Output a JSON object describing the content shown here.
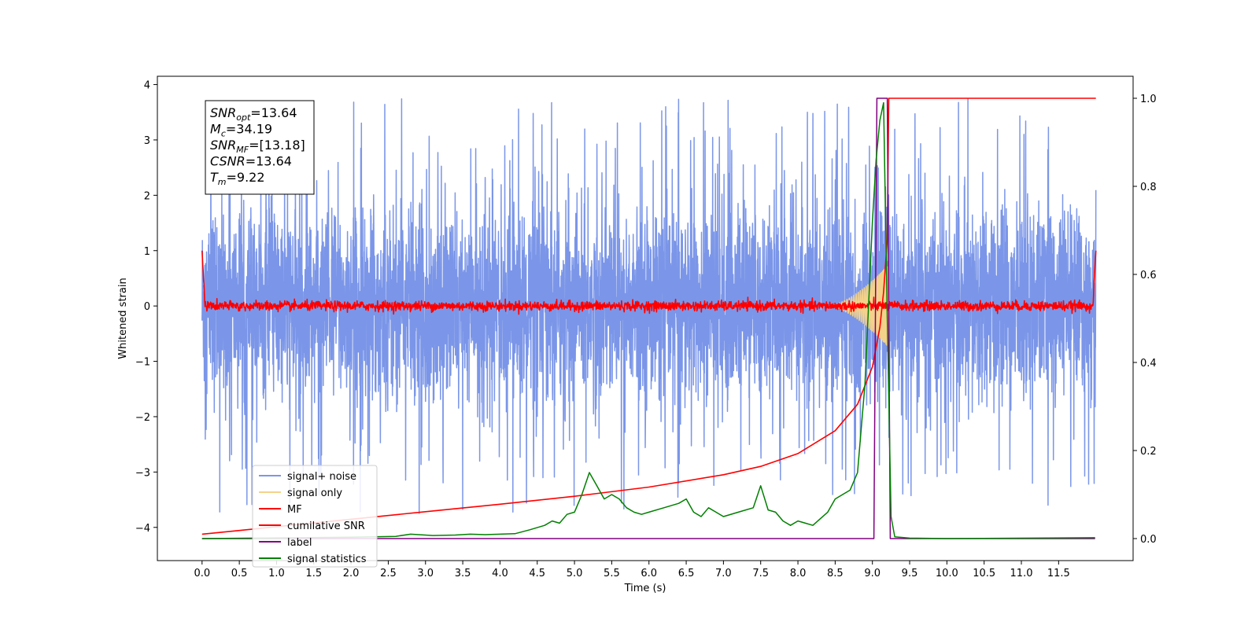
{
  "chart_data": {
    "type": "line",
    "title": "",
    "xlabel": "Time (s)",
    "ylabel": "Whitened strain",
    "y2label": "",
    "xlim": [
      -0.6,
      12.5
    ],
    "ylim": [
      -4.6,
      4.15
    ],
    "y2lim": [
      -0.05,
      1.05
    ],
    "xticks": [
      0.0,
      0.5,
      1.0,
      1.5,
      2.0,
      2.5,
      3.0,
      3.5,
      4.0,
      4.5,
      5.0,
      5.5,
      6.0,
      6.5,
      7.0,
      7.5,
      8.0,
      8.5,
      9.0,
      9.5,
      10.0,
      10.5,
      11.0,
      11.5
    ],
    "xtick_labels": [
      "0.0",
      "0.5",
      "1.0",
      "1.5",
      "2.0",
      "2.5",
      "3.0",
      "3.5",
      "4.0",
      "4.5",
      "5.0",
      "5.5",
      "6.0",
      "6.5",
      "7.0",
      "7.5",
      "8.0",
      "8.5",
      "9.0",
      "9.5",
      "10.0",
      "10.5",
      "11.0",
      "11.5"
    ],
    "yticks": [
      -4,
      -3,
      -2,
      -1,
      0,
      1,
      2,
      3,
      4
    ],
    "ytick_labels": [
      "−4",
      "−3",
      "−2",
      "−1",
      "0",
      "1",
      "2",
      "3",
      "4"
    ],
    "y2ticks": [
      0.0,
      0.2,
      0.4,
      0.6,
      0.8,
      1.0
    ],
    "y2tick_labels": [
      "0.0",
      "0.2",
      "0.4",
      "0.6",
      "0.8",
      "1.0"
    ],
    "grid": false,
    "legend_position": "lower-left",
    "annotation": {
      "lines": [
        {
          "base": "SNR",
          "sub": "opt",
          "value": "=13.64"
        },
        {
          "base": "M",
          "sub": "c",
          "value": "=34.19"
        },
        {
          "base": "SNR",
          "sub": "MF",
          "value": "=[13.18]"
        },
        {
          "base": "CSNR",
          "sub": "",
          "value": "=13.64"
        },
        {
          "base": "T",
          "sub": "m",
          "value": "=9.22"
        }
      ]
    },
    "series": [
      {
        "name": "signal+ noise",
        "axis": "left",
        "color": "#7b96e8",
        "kind": "noise",
        "x_range": [
          0.0,
          12.0
        ],
        "envelope_typical": 2.0,
        "envelope_peak": 3.75
      },
      {
        "name": "signal only",
        "axis": "left",
        "color": "#f5d28a",
        "kind": "chirp",
        "x_range": [
          8.4,
          9.22
        ],
        "peak_amplitude": 0.75
      },
      {
        "name": "MF",
        "axis": "left",
        "color": "#ff0000",
        "kind": "mf",
        "x_range": [
          0.0,
          12.0
        ],
        "baseline": 0.0,
        "jitter": 0.08,
        "edge_value": 1.0
      },
      {
        "name": "cumilative SNR",
        "axis": "right",
        "color": "#ff0000",
        "x": [
          0.0,
          1.0,
          2.0,
          3.0,
          4.0,
          5.0,
          6.0,
          7.0,
          7.5,
          8.0,
          8.5,
          8.8,
          9.0,
          9.1,
          9.15,
          9.2,
          9.22,
          12.0
        ],
        "y": [
          0.01,
          0.027,
          0.044,
          0.061,
          0.078,
          0.096,
          0.117,
          0.145,
          0.164,
          0.193,
          0.245,
          0.305,
          0.39,
          0.48,
          0.56,
          0.68,
          1.0,
          1.0
        ]
      },
      {
        "name": "label",
        "axis": "right",
        "color": "#800080",
        "x": [
          0.0,
          9.02,
          9.06,
          9.2,
          9.24,
          11.99
        ],
        "y": [
          0.0,
          0.0,
          1.0,
          1.0,
          0.0,
          0.0
        ]
      },
      {
        "name": "signal statistics",
        "axis": "right",
        "color": "#008000",
        "x": [
          0.0,
          2.0,
          2.6,
          2.8,
          3.1,
          3.4,
          3.6,
          3.8,
          4.0,
          4.2,
          4.4,
          4.6,
          4.7,
          4.8,
          4.9,
          5.0,
          5.1,
          5.2,
          5.3,
          5.4,
          5.5,
          5.6,
          5.7,
          5.8,
          5.9,
          6.0,
          6.2,
          6.4,
          6.5,
          6.6,
          6.7,
          6.8,
          6.9,
          7.0,
          7.2,
          7.4,
          7.5,
          7.6,
          7.7,
          7.8,
          7.9,
          8.0,
          8.1,
          8.2,
          8.3,
          8.4,
          8.5,
          8.6,
          8.7,
          8.8,
          8.9,
          9.0,
          9.05,
          9.1,
          9.15,
          9.2,
          9.25,
          9.3,
          9.5,
          10.0,
          11.99
        ],
        "y": [
          0.0,
          0.003,
          0.005,
          0.01,
          0.007,
          0.008,
          0.01,
          0.009,
          0.01,
          0.011,
          0.02,
          0.03,
          0.04,
          0.035,
          0.055,
          0.06,
          0.1,
          0.15,
          0.12,
          0.09,
          0.1,
          0.09,
          0.07,
          0.06,
          0.055,
          0.06,
          0.07,
          0.08,
          0.09,
          0.06,
          0.05,
          0.07,
          0.06,
          0.05,
          0.06,
          0.07,
          0.12,
          0.065,
          0.06,
          0.04,
          0.03,
          0.04,
          0.035,
          0.03,
          0.045,
          0.06,
          0.09,
          0.1,
          0.11,
          0.15,
          0.35,
          0.72,
          0.86,
          0.95,
          0.99,
          0.5,
          0.05,
          0.004,
          0.001,
          0.0,
          0.002
        ]
      }
    ]
  }
}
